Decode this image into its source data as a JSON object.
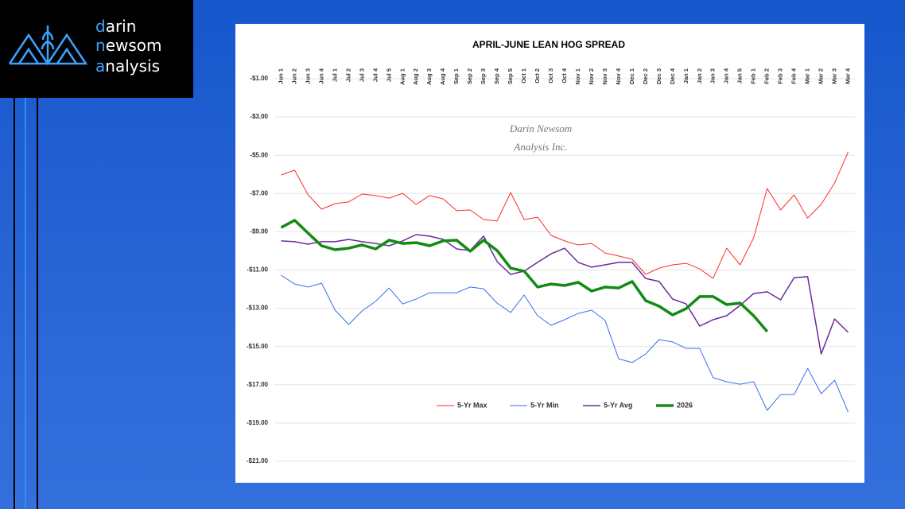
{
  "logo": {
    "lines": [
      "darin",
      "newsom",
      "analysis"
    ]
  },
  "chart_data": {
    "type": "line",
    "title": "APRIL-JUNE LEAN HOG SPREAD",
    "annotation": [
      "Darin Newsom",
      "Analysis Inc."
    ],
    "categories": [
      "Jun 1",
      "Jun 2",
      "Jun 3",
      "Jun 4",
      "Jul 1",
      "Jul 2",
      "Jul 3",
      "Jul 4",
      "Jul 5",
      "Aug 1",
      "Aug 2",
      "Aug 3",
      "Aug 4",
      "Sep 1",
      "Sep 2",
      "Sep 3",
      "Sep 4",
      "Sep 5",
      "Oct 1",
      "Oct 2",
      "Oct 3",
      "Oct 4",
      "Nov 1",
      "Nov 2",
      "Nov 3",
      "Nov 4",
      "Dec 1",
      "Dec 2",
      "Dec 3",
      "Dec 4",
      "Jan 1",
      "Jan 2",
      "Jan 3",
      "Jan 4",
      "Jan 5",
      "Feb 1",
      "Feb 2",
      "Feb 3",
      "Feb 4",
      "Mar 1",
      "Mar 2",
      "Mar 3",
      "Mar 4"
    ],
    "series": [
      {
        "name": "5-Yr Max",
        "color": "#ff2a2a",
        "width": 1,
        "values": [
          -6.03,
          -5.78,
          -7.07,
          -7.82,
          -7.53,
          -7.44,
          -7.03,
          -7.11,
          -7.24,
          -6.99,
          -7.57,
          -7.11,
          -7.28,
          -7.9,
          -7.86,
          -8.36,
          -8.44,
          -6.95,
          -8.36,
          -8.24,
          -9.19,
          -9.48,
          -9.69,
          -9.61,
          -10.11,
          -10.27,
          -10.44,
          -11.23,
          -10.9,
          -10.73,
          -10.65,
          -10.94,
          -11.44,
          -9.86,
          -10.73,
          -9.32,
          -6.74,
          -7.86,
          -7.07,
          -8.28,
          -7.57,
          -6.45,
          -4.83
        ]
      },
      {
        "name": "5-Yr Min",
        "color": "#3a6fe8",
        "width": 1,
        "values": [
          -11.27,
          -11.73,
          -11.89,
          -11.69,
          -13.1,
          -13.85,
          -13.14,
          -12.64,
          -11.94,
          -12.77,
          -12.52,
          -12.19,
          -12.19,
          -12.19,
          -11.89,
          -11.98,
          -12.73,
          -13.22,
          -12.31,
          -13.39,
          -13.89,
          -13.6,
          -13.27,
          -13.1,
          -13.64,
          -15.64,
          -15.84,
          -15.39,
          -14.64,
          -14.76,
          -15.1,
          -15.1,
          -16.63,
          -16.84,
          -16.97,
          -16.84,
          -18.34,
          -17.51,
          -17.51,
          -16.14,
          -17.47,
          -16.76,
          -18.42
        ]
      },
      {
        "name": "5-Yr Avg",
        "color": "#6a2a9a",
        "width": 1.5,
        "values": [
          -9.48,
          -9.52,
          -9.65,
          -9.52,
          -9.52,
          -9.4,
          -9.52,
          -9.61,
          -9.73,
          -9.48,
          -9.15,
          -9.23,
          -9.4,
          -9.9,
          -9.98,
          -9.23,
          -10.56,
          -11.23,
          -11.06,
          -10.6,
          -10.15,
          -9.86,
          -10.6,
          -10.85,
          -10.73,
          -10.6,
          -10.6,
          -11.44,
          -11.6,
          -12.52,
          -12.77,
          -13.93,
          -13.6,
          -13.39,
          -12.85,
          -12.23,
          -12.14,
          -12.56,
          -11.4,
          -11.35,
          -15.39,
          -13.56,
          -14.26
        ]
      },
      {
        "name": "2026",
        "color": "#138a13",
        "width": 3.5,
        "values": [
          -8.78,
          -8.4,
          -9.07,
          -9.73,
          -9.94,
          -9.86,
          -9.69,
          -9.9,
          -9.44,
          -9.61,
          -9.57,
          -9.73,
          -9.48,
          -9.44,
          -10.02,
          -9.44,
          -9.98,
          -10.9,
          -11.06,
          -11.89,
          -11.73,
          -11.81,
          -11.64,
          -12.1,
          -11.89,
          -11.94,
          -11.6,
          -12.6,
          -12.89,
          -13.35,
          -13.02,
          -12.39,
          -12.39,
          -12.81,
          -12.73,
          -13.39,
          -14.22,
          null,
          null,
          null,
          null,
          null,
          null
        ]
      }
    ],
    "ylim": [
      -21,
      -1
    ],
    "yticks": [
      {
        "value": -1,
        "label": "-$1.00"
      },
      {
        "value": -3,
        "label": "-$3.00"
      },
      {
        "value": -5,
        "label": "-$5.00"
      },
      {
        "value": -7,
        "label": "-$7.00"
      },
      {
        "value": -9,
        "label": "-$9.00"
      },
      {
        "value": -11,
        "label": "-$11.00"
      },
      {
        "value": -13,
        "label": "-$13.00"
      },
      {
        "value": -15,
        "label": "-$15.00"
      },
      {
        "value": -17,
        "label": "-$17.00"
      },
      {
        "value": -19,
        "label": "-$19.00"
      },
      {
        "value": -21,
        "label": "-$21.00"
      }
    ],
    "grid": true,
    "legend": "bottom"
  }
}
